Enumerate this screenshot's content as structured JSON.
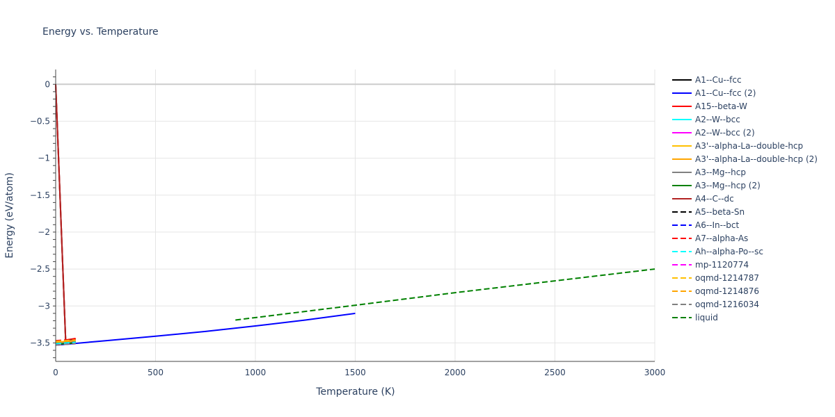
{
  "chart_data": {
    "type": "line",
    "title": "Energy vs. Temperature",
    "xlabel": "Temperature (K)",
    "ylabel": "Energy (eV/atom)",
    "xlim": [
      0,
      3000
    ],
    "ylim": [
      -3.75,
      0.2
    ],
    "xticks": [
      0,
      500,
      1000,
      1500,
      2000,
      2500,
      3000
    ],
    "yticks": [
      0,
      -0.5,
      -1,
      -1.5,
      -2,
      -2.5,
      -3,
      -3.5
    ],
    "ytick_labels": [
      "0",
      "−0.5",
      "−1",
      "−1.5",
      "−2",
      "−2.5",
      "−3",
      "−3.5"
    ],
    "grid": true,
    "legend_position": "right",
    "series": [
      {
        "name": "A1--Cu--fcc",
        "color": "#000000",
        "dash": "solid",
        "x": [
          0,
          50,
          100
        ],
        "y": [
          0,
          -3.46,
          -3.45
        ]
      },
      {
        "name": "A1--Cu--fcc (2)",
        "color": "#0000ff",
        "dash": "solid",
        "x": [
          0,
          250,
          500,
          750,
          1000,
          1250,
          1500
        ],
        "y": [
          -3.53,
          -3.47,
          -3.41,
          -3.345,
          -3.27,
          -3.19,
          -3.1
        ]
      },
      {
        "name": "A15--beta-W",
        "color": "#ff0000",
        "dash": "solid",
        "x": [
          0,
          50,
          100
        ],
        "y": [
          0,
          -3.46,
          -3.44
        ]
      },
      {
        "name": "A2--W--bcc",
        "color": "#00ffff",
        "dash": "solid",
        "x": [
          0,
          50,
          100
        ],
        "y": [
          -3.5,
          -3.49,
          -3.48
        ]
      },
      {
        "name": "A2--W--bcc (2)",
        "color": "#ff00ff",
        "dash": "solid",
        "x": [
          0,
          50,
          100
        ],
        "y": [
          -3.52,
          -3.51,
          -3.5
        ]
      },
      {
        "name": "A3'--alpha-La--double-hcp",
        "color": "#ffc000",
        "dash": "solid",
        "x": [
          0,
          50,
          100
        ],
        "y": [
          -3.49,
          -3.48,
          -3.47
        ]
      },
      {
        "name": "A3'--alpha-La--double-hcp (2)",
        "color": "#ffa500",
        "dash": "solid",
        "x": [
          0,
          50,
          100
        ],
        "y": [
          -3.5,
          -3.49,
          -3.48
        ]
      },
      {
        "name": "A3--Mg--hcp",
        "color": "#808080",
        "dash": "solid",
        "x": [
          0,
          50,
          100
        ],
        "y": [
          -3.51,
          -3.5,
          -3.49
        ]
      },
      {
        "name": "A3--Mg--hcp (2)",
        "color": "#008000",
        "dash": "solid",
        "x": [
          0,
          50,
          100
        ],
        "y": [
          -3.52,
          -3.51,
          -3.5
        ]
      },
      {
        "name": "A4--C--dc",
        "color": "#b22222",
        "dash": "solid",
        "x": [
          0,
          50,
          100
        ],
        "y": [
          0,
          -3.46,
          -3.45
        ]
      },
      {
        "name": "A5--beta-Sn",
        "color": "#000000",
        "dash": "dash",
        "x": [
          0,
          50,
          100
        ],
        "y": [
          -3.5,
          -3.49,
          -3.48
        ]
      },
      {
        "name": "A6--In--bct",
        "color": "#0000ff",
        "dash": "dash",
        "x": [
          0,
          50,
          100
        ],
        "y": [
          -3.52,
          -3.51,
          -3.5
        ]
      },
      {
        "name": "A7--alpha-As",
        "color": "#ff0000",
        "dash": "dash",
        "x": [
          0,
          50,
          100
        ],
        "y": [
          -3.47,
          -3.46,
          -3.45
        ]
      },
      {
        "name": "Ah--alpha-Po--sc",
        "color": "#00ffff",
        "dash": "dash",
        "x": [
          0,
          50,
          100
        ],
        "y": [
          -3.51,
          -3.5,
          -3.49
        ]
      },
      {
        "name": "mp-1120774",
        "color": "#ff00ff",
        "dash": "dash",
        "x": [
          0,
          50,
          100
        ],
        "y": [
          -3.53,
          -3.52,
          -3.51
        ]
      },
      {
        "name": "oqmd-1214787",
        "color": "#ffc000",
        "dash": "dash",
        "x": [
          0,
          50,
          100
        ],
        "y": [
          -3.48,
          -3.47,
          -3.46
        ]
      },
      {
        "name": "oqmd-1214876",
        "color": "#ffa500",
        "dash": "dash",
        "x": [
          0,
          50,
          100
        ],
        "y": [
          -3.49,
          -3.48,
          -3.47
        ]
      },
      {
        "name": "oqmd-1216034",
        "color": "#808080",
        "dash": "dash",
        "x": [
          0,
          50,
          100
        ],
        "y": [
          -3.53,
          -3.52,
          -3.51
        ]
      },
      {
        "name": "liquid",
        "color": "#008000",
        "dash": "dash",
        "x": [
          900,
          1500,
          2000,
          2500,
          3000
        ],
        "y": [
          -3.19,
          -2.99,
          -2.82,
          -2.66,
          -2.5
        ]
      }
    ]
  }
}
